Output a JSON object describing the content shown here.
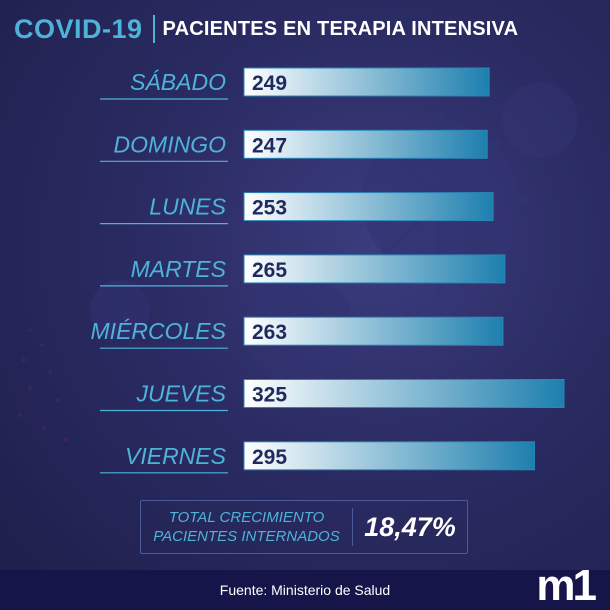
{
  "header": {
    "brand": "COVID-19",
    "title": "PACIENTES EN TERAPIA INTENSIVA"
  },
  "chart_data": {
    "type": "bar",
    "orientation": "horizontal",
    "categories": [
      "SÁBADO",
      "DOMINGO",
      "LUNES",
      "MARTES",
      "MIÉRCOLES",
      "JUEVES",
      "VIERNES"
    ],
    "values": [
      249,
      247,
      253,
      265,
      263,
      325,
      295
    ],
    "title": "PACIENTES EN TERAPIA INTENSIVA",
    "xlabel": "",
    "ylabel": "",
    "xlim": [
      0,
      325
    ],
    "grid": false,
    "legend": "none",
    "colors": {
      "bar_start": "#ffffff",
      "bar_end": "#1d7fae",
      "value_text": "#1f2a5e",
      "label_text": "#4fb3d9"
    }
  },
  "summary": {
    "label_line1": "TOTAL CRECIMIENTO",
    "label_line2": "PACIENTES INTERNADOS",
    "value": "18,47%"
  },
  "footer": {
    "source": "Fuente: Ministerio de Salud",
    "logo_text": "m1"
  }
}
